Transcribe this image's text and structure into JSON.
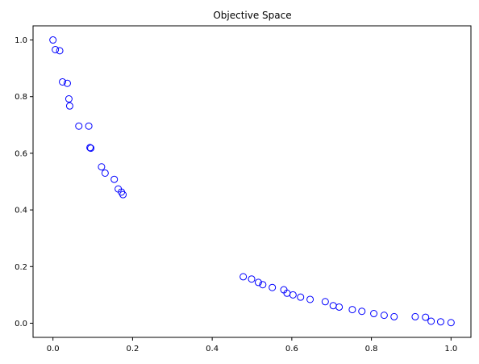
{
  "chart_data": {
    "type": "scatter",
    "title": "Objective Space",
    "xlabel": "",
    "ylabel": "",
    "xlim": [
      -0.05,
      1.05
    ],
    "ylim": [
      -0.05,
      1.05
    ],
    "grid": false,
    "marker": "open-circle",
    "color": "#0000ff",
    "x_ticks": [
      {
        "value": 0.0,
        "label": "0.0"
      },
      {
        "value": 0.2,
        "label": "0.2"
      },
      {
        "value": 0.4,
        "label": "0.4"
      },
      {
        "value": 0.6,
        "label": "0.6"
      },
      {
        "value": 0.8,
        "label": "0.8"
      },
      {
        "value": 1.0,
        "label": "1.0"
      }
    ],
    "y_ticks": [
      {
        "value": 0.0,
        "label": "0.0"
      },
      {
        "value": 0.2,
        "label": "0.2"
      },
      {
        "value": 0.4,
        "label": "0.4"
      },
      {
        "value": 0.6,
        "label": "0.6"
      },
      {
        "value": 0.8,
        "label": "0.8"
      },
      {
        "value": 1.0,
        "label": "1.0"
      }
    ],
    "series": [
      {
        "points": [
          [
            0.0,
            1.0
          ],
          [
            0.006,
            0.966
          ],
          [
            0.017,
            0.962
          ],
          [
            0.024,
            0.852
          ],
          [
            0.036,
            0.847
          ],
          [
            0.04,
            0.792
          ],
          [
            0.042,
            0.767
          ],
          [
            0.065,
            0.696
          ],
          [
            0.09,
            0.696
          ],
          [
            0.093,
            0.62
          ],
          [
            0.095,
            0.618
          ],
          [
            0.122,
            0.552
          ],
          [
            0.131,
            0.53
          ],
          [
            0.154,
            0.508
          ],
          [
            0.164,
            0.474
          ],
          [
            0.172,
            0.463
          ],
          [
            0.176,
            0.454
          ],
          [
            0.478,
            0.164
          ],
          [
            0.499,
            0.156
          ],
          [
            0.516,
            0.144
          ],
          [
            0.527,
            0.136
          ],
          [
            0.551,
            0.126
          ],
          [
            0.58,
            0.118
          ],
          [
            0.588,
            0.106
          ],
          [
            0.603,
            0.1
          ],
          [
            0.622,
            0.092
          ],
          [
            0.646,
            0.084
          ],
          [
            0.684,
            0.076
          ],
          [
            0.704,
            0.062
          ],
          [
            0.719,
            0.057
          ],
          [
            0.752,
            0.048
          ],
          [
            0.776,
            0.042
          ],
          [
            0.806,
            0.034
          ],
          [
            0.832,
            0.028
          ],
          [
            0.857,
            0.023
          ],
          [
            0.91,
            0.023
          ],
          [
            0.936,
            0.021
          ],
          [
            0.95,
            0.007
          ],
          [
            0.974,
            0.005
          ],
          [
            1.0,
            0.002
          ]
        ]
      }
    ]
  }
}
